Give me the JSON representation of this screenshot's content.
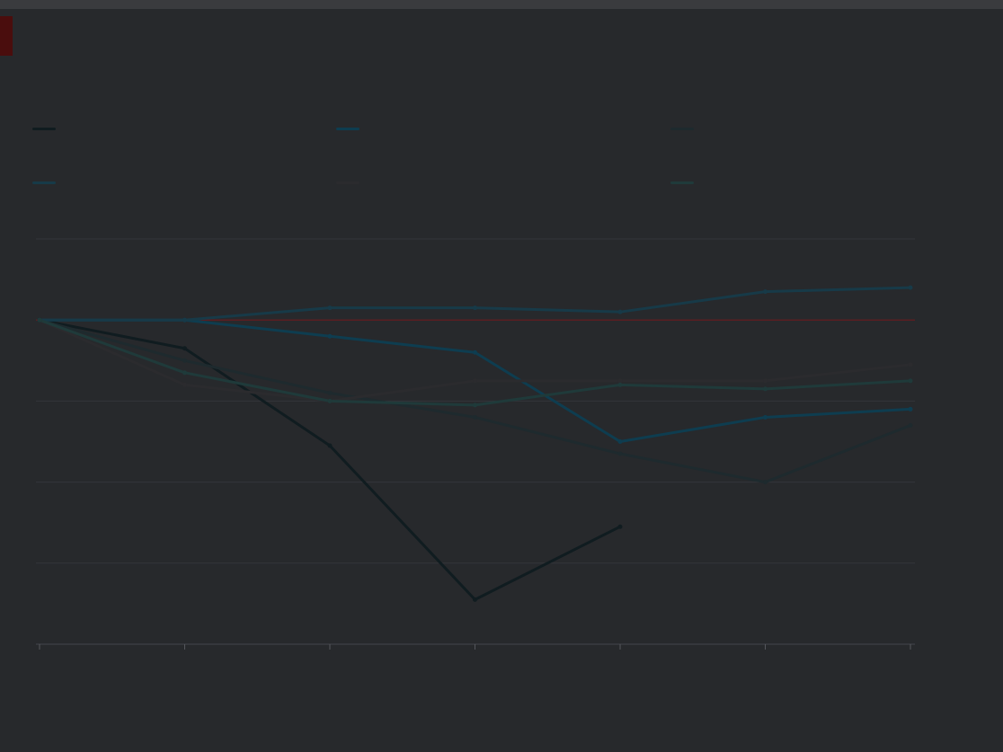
{
  "header": {
    "title": "",
    "subtitle": ""
  },
  "footnote": "",
  "colors": {
    "background": "#27292c",
    "reference_line": "#5a1e22",
    "grid": "#33353a",
    "accent": "#4a0d0d"
  },
  "chart_data": {
    "type": "line",
    "title": "",
    "xlabel": "",
    "ylabel": "",
    "x": [
      0,
      1,
      2,
      3,
      4,
      5,
      6
    ],
    "x_tick_labels": [
      "",
      "",
      "",
      "",
      "",
      "",
      ""
    ],
    "ylim": [
      60,
      110
    ],
    "y_ticks": [
      60,
      70,
      80,
      90,
      100,
      110
    ],
    "y_tick_labels": [
      "",
      "",
      "",
      "",
      "",
      ""
    ],
    "y_axis_side": "right",
    "grid": true,
    "reference_value": 100,
    "legend_position": "top",
    "series": [
      {
        "color": "#101c20",
        "values": [
          100,
          96.5,
          84.5,
          65.5,
          74.5,
          null,
          null
        ],
        "end_label": ""
      },
      {
        "color": "#0e3d50",
        "values": [
          100,
          100,
          98,
          96,
          85,
          88,
          89
        ],
        "end_label": ""
      },
      {
        "color": "#1e2a2e",
        "values": [
          100,
          95,
          91,
          88,
          83.5,
          80,
          87
        ],
        "end_label": ""
      },
      {
        "color": "#173a48",
        "values": [
          100,
          100,
          101.5,
          101.5,
          101,
          103.5,
          104
        ],
        "end_label": ""
      },
      {
        "color": "#2b2b2e",
        "values": [
          100,
          92,
          90,
          92.5,
          92.5,
          92.5,
          94.5
        ],
        "end_label": ""
      },
      {
        "color": "#1f3a3a",
        "values": [
          100,
          93.5,
          90,
          89.5,
          92,
          91.5,
          92.5
        ],
        "end_label": ""
      }
    ]
  }
}
